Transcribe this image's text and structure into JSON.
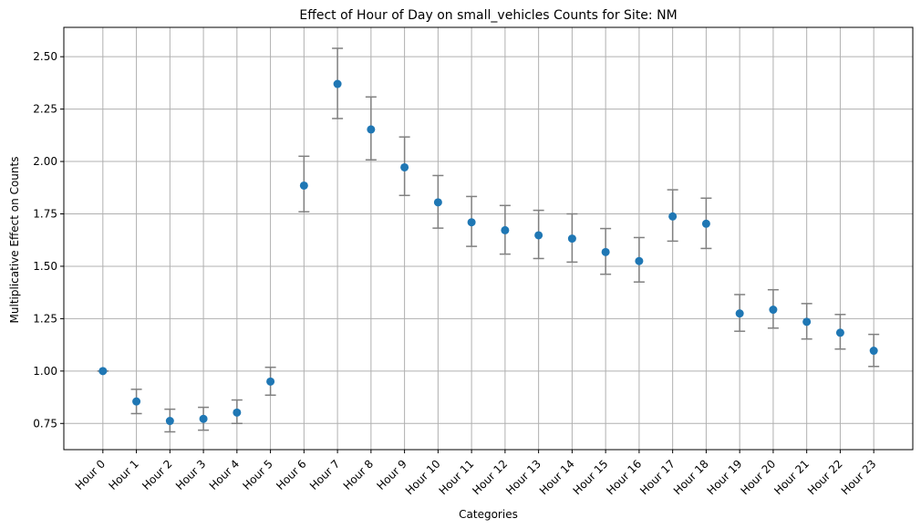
{
  "chart_data": {
    "type": "scatter",
    "title": "Effect of Hour of Day on small_vehicles Counts for Site: NM",
    "xlabel": "Categories",
    "ylabel": "Multiplicative Effect on Counts",
    "categories": [
      "Hour 0",
      "Hour 1",
      "Hour 2",
      "Hour 3",
      "Hour 4",
      "Hour 5",
      "Hour 6",
      "Hour 7",
      "Hour 8",
      "Hour 9",
      "Hour 10",
      "Hour 11",
      "Hour 12",
      "Hour 13",
      "Hour 14",
      "Hour 15",
      "Hour 16",
      "Hour 17",
      "Hour 18",
      "Hour 19",
      "Hour 20",
      "Hour 21",
      "Hour 22",
      "Hour 23"
    ],
    "values": [
      1.0,
      0.855,
      0.762,
      0.772,
      0.802,
      0.95,
      1.885,
      2.37,
      2.153,
      1.972,
      1.805,
      1.71,
      1.672,
      1.648,
      1.632,
      1.568,
      1.525,
      1.738,
      1.703,
      1.275,
      1.293,
      1.235,
      1.183,
      1.097
    ],
    "lower": [
      1.0,
      0.797,
      0.71,
      0.718,
      0.75,
      0.885,
      1.76,
      2.205,
      2.008,
      1.838,
      1.682,
      1.595,
      1.558,
      1.537,
      1.52,
      1.462,
      1.425,
      1.62,
      1.585,
      1.19,
      1.205,
      1.153,
      1.105,
      1.022
    ],
    "upper": [
      1.0,
      0.913,
      0.818,
      0.827,
      0.862,
      1.018,
      2.025,
      2.54,
      2.308,
      2.117,
      1.933,
      1.833,
      1.79,
      1.767,
      1.75,
      1.68,
      1.637,
      1.865,
      1.825,
      1.365,
      1.388,
      1.322,
      1.27,
      1.175
    ],
    "yticks": [
      "0.75",
      "1.00",
      "1.25",
      "1.50",
      "1.75",
      "2.00",
      "2.25",
      "2.50"
    ],
    "ylim": [
      0.625,
      2.64
    ],
    "grid": true,
    "colors": {
      "point": "#1f77b4",
      "errorbar": "#808080",
      "grid": "#b0b0b0",
      "axis": "#000000"
    }
  }
}
